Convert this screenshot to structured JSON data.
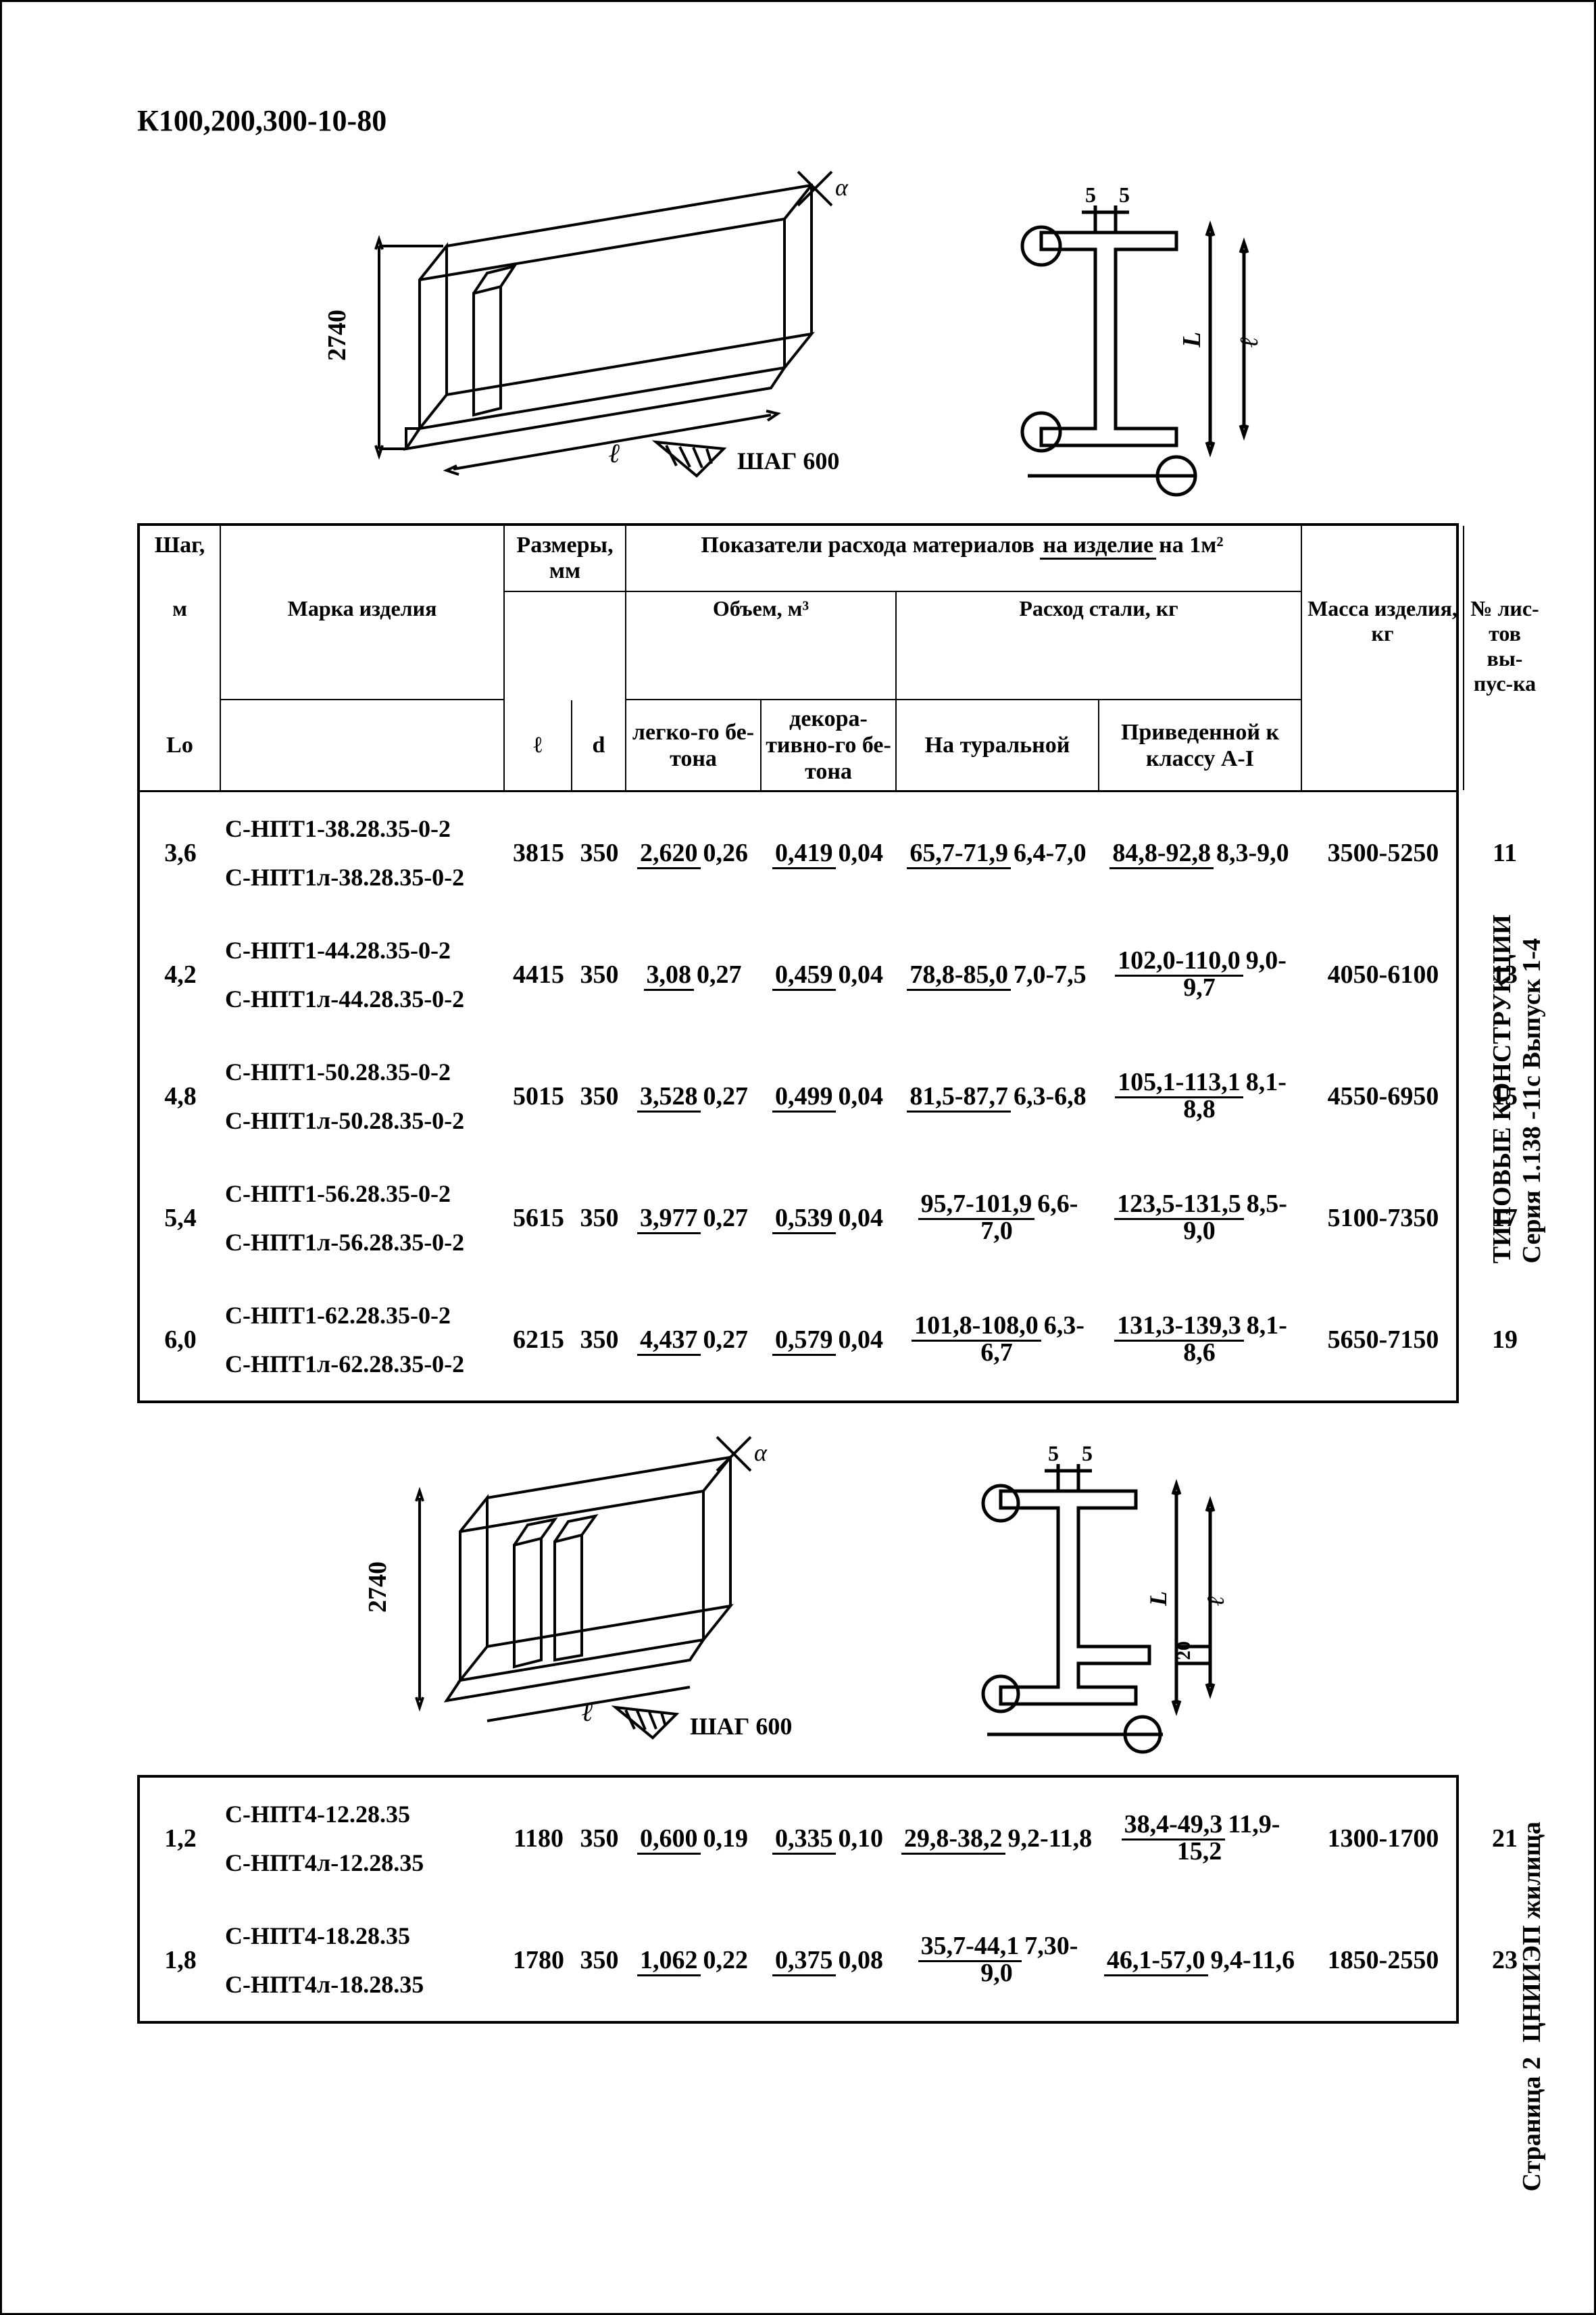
{
  "doc_id": "К100,200,300-10-80",
  "colors": {
    "stroke": "#000000",
    "bg": "#ffffff"
  },
  "figure1": {
    "height_label": "2740",
    "step_label": "ШАГ 600",
    "l_label": "ℓ",
    "alpha_label": "α",
    "section_dim": "5",
    "section_dim2": "5",
    "L_label": "L",
    "l2_label": "ℓ"
  },
  "figure2": {
    "height_label": "2740",
    "step_label": "ШАГ 600",
    "l_label": "ℓ",
    "alpha_label": "α",
    "section_dim": "5",
    "section_dim2": "5",
    "L_label": "L",
    "l2_label": "ℓ",
    "extra_dim": "20"
  },
  "table_header": {
    "col_shag": "Шаг,",
    "col_shag_unit": "м",
    "col_Lo": "Lо",
    "col_mark": "Марка изделия",
    "col_dims": "Размеры, мм",
    "col_metrics_top": "Показатели расхода материалов",
    "col_metrics_mid1": "на изделие",
    "col_metrics_mid2": "на 1м²",
    "col_vol": "Объем, м³",
    "col_steel": "Расход стали, кг",
    "col_l": "ℓ",
    "col_d": "d",
    "col_light": "легко-го бе-тона",
    "col_decor": "декора-тивно-го бе-тона",
    "col_nat": "На туральной",
    "col_priv": "Приведенной к классу А-I",
    "col_mass": "Масса изделия, кг",
    "col_sheets": "№ лис-тов вы-пус-ка"
  },
  "rows1": [
    {
      "shag": "3,6",
      "mark1": "С-НПТ1-38.28.35-0-2",
      "mark2": "С-НПТ1л-38.28.35-0-2",
      "l": "3815",
      "d": "350",
      "vol_light_n": "2,620",
      "vol_light_d": "0,26",
      "vol_dec_n": "0,419",
      "vol_dec_d": "0,04",
      "nat_n": "65,7-71,9",
      "nat_d": "6,4-7,0",
      "pri_n": "84,8-92,8",
      "pri_d": "8,3-9,0",
      "mass": "3500-5250",
      "sheet": "11"
    },
    {
      "shag": "4,2",
      "mark1": "С-НПТ1-44.28.35-0-2",
      "mark2": "С-НПТ1л-44.28.35-0-2",
      "l": "4415",
      "d": "350",
      "vol_light_n": "3,08",
      "vol_light_d": "0,27",
      "vol_dec_n": "0,459",
      "vol_dec_d": "0,04",
      "nat_n": "78,8-85,0",
      "nat_d": "7,0-7,5",
      "pri_n": "102,0-110,0",
      "pri_d": "9,0-9,7",
      "mass": "4050-6100",
      "sheet": "13"
    },
    {
      "shag": "4,8",
      "mark1": "С-НПТ1-50.28.35-0-2",
      "mark2": "С-НПТ1л-50.28.35-0-2",
      "l": "5015",
      "d": "350",
      "vol_light_n": "3,528",
      "vol_light_d": "0,27",
      "vol_dec_n": "0,499",
      "vol_dec_d": "0,04",
      "nat_n": "81,5-87,7",
      "nat_d": "6,3-6,8",
      "pri_n": "105,1-113,1",
      "pri_d": "8,1-8,8",
      "mass": "4550-6950",
      "sheet": "15"
    },
    {
      "shag": "5,4",
      "mark1": "С-НПТ1-56.28.35-0-2",
      "mark2": "С-НПТ1л-56.28.35-0-2",
      "l": "5615",
      "d": "350",
      "vol_light_n": "3,977",
      "vol_light_d": "0,27",
      "vol_dec_n": "0,539",
      "vol_dec_d": "0,04",
      "nat_n": "95,7-101,9",
      "nat_d": "6,6-7,0",
      "pri_n": "123,5-131,5",
      "pri_d": "8,5-9,0",
      "mass": "5100-7350",
      "sheet": "17"
    },
    {
      "shag": "6,0",
      "mark1": "С-НПТ1-62.28.35-0-2",
      "mark2": "С-НПТ1л-62.28.35-0-2",
      "l": "6215",
      "d": "350",
      "vol_light_n": "4,437",
      "vol_light_d": "0,27",
      "vol_dec_n": "0,579",
      "vol_dec_d": "0,04",
      "nat_n": "101,8-108,0",
      "nat_d": "6,3-6,7",
      "pri_n": "131,3-139,3",
      "pri_d": "8,1-8,6",
      "mass": "5650-7150",
      "sheet": "19"
    }
  ],
  "rows2": [
    {
      "shag": "1,2",
      "mark1": "С-НПТ4-12.28.35",
      "mark2": "С-НПТ4л-12.28.35",
      "l": "1180",
      "d": "350",
      "vol_light_n": "0,600",
      "vol_light_d": "0,19",
      "vol_dec_n": "0,335",
      "vol_dec_d": "0,10",
      "nat_n": "29,8-38,2",
      "nat_d": "9,2-11,8",
      "pri_n": "38,4-49,3",
      "pri_d": "11,9-15,2",
      "mass": "1300-1700",
      "sheet": "21"
    },
    {
      "shag": "1,8",
      "mark1": "С-НПТ4-18.28.35",
      "mark2": "С-НПТ4л-18.28.35",
      "l": "1780",
      "d": "350",
      "vol_light_n": "1,062",
      "vol_light_d": "0,22",
      "vol_dec_n": "0,375",
      "vol_dec_d": "0,08",
      "nat_n": "35,7-44,1",
      "nat_d": "7,30-9,0",
      "pri_n": "46,1-57,0",
      "pri_d": "9,4-11,6",
      "mass": "1850-2550",
      "sheet": "23"
    }
  ],
  "side_text1a": "ТИПОВЫЕ КОНСТРУКЦИИ",
  "side_text1b": "Серия 1.138 -11с Выпуск 1-4",
  "side_text2": "ЦНИИЭП жилища",
  "side_text3": "Страница 2"
}
